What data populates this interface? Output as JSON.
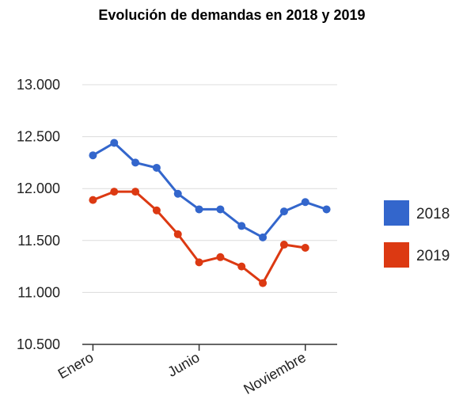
{
  "chart_data": {
    "type": "line",
    "title": "Evolución de demandas en 2018 y 2019",
    "xlabel": "",
    "ylabel": "",
    "x": [
      1,
      2,
      3,
      4,
      5,
      6,
      7,
      8,
      9,
      10,
      11,
      12
    ],
    "x_tick_labels": [
      {
        "x": 1,
        "label": "Enero"
      },
      {
        "x": 6,
        "label": "Junio"
      },
      {
        "x": 11,
        "label": "Noviembre"
      }
    ],
    "ylim": [
      10500,
      13000
    ],
    "y_ticks": [
      10500,
      11000,
      11500,
      12000,
      12500,
      13000
    ],
    "y_tick_labels": [
      "10.500",
      "11.000",
      "11.500",
      "12.000",
      "12.500",
      "13.000"
    ],
    "grid": true,
    "legend_position": "right",
    "series": [
      {
        "name": "2018",
        "color": "#3366cc",
        "values": [
          12320,
          12440,
          12250,
          12200,
          11950,
          11800,
          11800,
          11640,
          11530,
          11780,
          11870,
          11800
        ]
      },
      {
        "name": "2019",
        "color": "#dc3912",
        "values": [
          11890,
          11970,
          11970,
          11790,
          11560,
          11290,
          11340,
          11250,
          11090,
          11460,
          11430,
          null
        ]
      }
    ]
  }
}
